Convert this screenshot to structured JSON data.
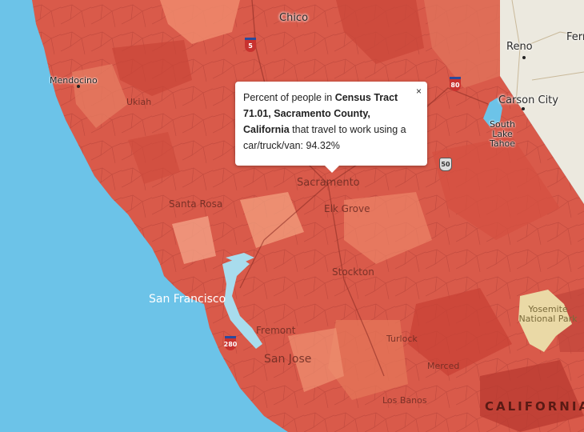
{
  "map": {
    "colors": {
      "ocean": "#6cc3e8",
      "land_base": "#d95a4a",
      "nevada": "#ece9df",
      "park": "#ead9a6"
    },
    "labels": {
      "chico": "Chico",
      "mendocino": "Mendocino",
      "ukiah": "Ukiah",
      "reno": "Reno",
      "carson_city": "Carson City",
      "south_lake_tahoe": "South Lake Tahoe",
      "ferry": "Ferr",
      "sacramento": "Sacramento",
      "elk_grove": "Elk Grove",
      "santa_rosa": "Santa Rosa",
      "stockton": "Stockton",
      "san_francisco": "San Francisco",
      "fremont": "Fremont",
      "san_jose": "San Jose",
      "turlock": "Turlock",
      "merced": "Merced",
      "los_banos": "Los Banos",
      "yosemite": "Yosemite National Park",
      "california": "CALIFORNIA"
    },
    "shields": {
      "i5": "5",
      "i80": "80",
      "us50": "50",
      "i280": "280"
    }
  },
  "popup": {
    "prefix": "Percent of people in",
    "tract": "Census Tract 71.01, Sacramento County, California",
    "suffix": "that travel to work using a car/truck/van:",
    "value": "94.32%",
    "close": "×"
  }
}
